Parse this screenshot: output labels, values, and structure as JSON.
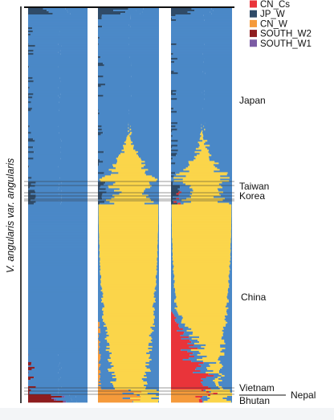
{
  "chart_data": {
    "type": "bar",
    "title": "",
    "ylabel": "V. angularis var. angularis",
    "panels": 3,
    "legend": [
      {
        "name": "CN_Cs",
        "color": "#e9343a"
      },
      {
        "name": "JP_W",
        "color": "#2f4b68"
      },
      {
        "name": "CN_W",
        "color": "#f59a3b"
      },
      {
        "name": "SOUTH_W2",
        "color": "#8e1d1f"
      },
      {
        "name": "SOUTH_W1",
        "color": "#7b5ba4"
      }
    ],
    "cluster_colors": {
      "JP_Cs": "#4a88c7",
      "CN_Cs_yellow": "#fbd54a",
      "CN_Cs": "#e9343a",
      "JP_W": "#2f4b68",
      "CN_W": "#f59a3b",
      "SOUTH_W2": "#8e1d1f",
      "SOUTH_W1": "#7b5ba4"
    },
    "regions": [
      {
        "name": "Japan"
      },
      {
        "name": "Taiwan"
      },
      {
        "name": "Korea"
      },
      {
        "name": "China"
      },
      {
        "name": "Vietnam"
      },
      {
        "name": "Nepal"
      },
      {
        "name": "Bhutan"
      }
    ]
  }
}
